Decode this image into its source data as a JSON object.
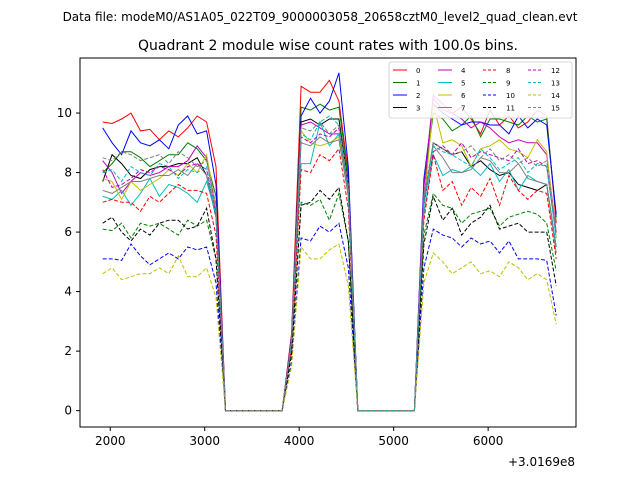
{
  "chart_data": {
    "type": "line",
    "suptitle": "Data file: modeM0/AS1A05_022T09_9000003058_20658cztM0_level2_quad_clean.evt",
    "title": "Quadrant 2 module wise count rates with 100.0s bins.",
    "xlabel": "",
    "ylabel": "",
    "x_offset_label": "+3.0169e8",
    "xlim": [
      1680,
      6930
    ],
    "ylim": [
      -0.55,
      11.85
    ],
    "xticks": [
      2000,
      3000,
      4000,
      5000,
      6000
    ],
    "yticks": [
      0,
      2,
      4,
      6,
      8,
      10
    ],
    "grid": false,
    "legend_position": "top-right",
    "x": [
      1920,
      2020,
      2120,
      2220,
      2320,
      2420,
      2520,
      2620,
      2720,
      2820,
      2920,
      3020,
      3120,
      3220,
      3320,
      3420,
      3520,
      3620,
      3720,
      3820,
      3920,
      4020,
      4120,
      4220,
      4320,
      4420,
      4520,
      4620,
      4720,
      4820,
      4920,
      5020,
      5120,
      5220,
      5320,
      5420,
      5520,
      5620,
      5720,
      5820,
      5920,
      6020,
      6120,
      6220,
      6320,
      6420,
      6520,
      6620,
      6720
    ],
    "series": [
      {
        "name": "0",
        "color": "#ff0000",
        "dash": false,
        "values": [
          9.7,
          9.65,
          9.8,
          10.0,
          9.4,
          9.45,
          9.1,
          9.4,
          9.2,
          9.5,
          9.9,
          9.7,
          8.2,
          0,
          0,
          0,
          0,
          0,
          0,
          0,
          2.6,
          10.9,
          10.7,
          10.7,
          11.1,
          10.4,
          8.0,
          0,
          0,
          0,
          0,
          0,
          0,
          0,
          7.0,
          10.5,
          10.1,
          10.0,
          10.2,
          9.8,
          9.3,
          10.1,
          9.6,
          9.9,
          9.5,
          9.7,
          10.1,
          9.9,
          6.3
        ]
      },
      {
        "name": "1",
        "color": "#008000",
        "dash": false,
        "values": [
          8.0,
          8.3,
          8.7,
          8.7,
          8.5,
          8.2,
          8.4,
          8.6,
          8.6,
          9.0,
          8.8,
          8.4,
          7.2,
          0,
          0,
          0,
          0,
          0,
          0,
          0,
          2.4,
          10.2,
          10.1,
          10.3,
          10.1,
          10.2,
          7.8,
          0,
          0,
          0,
          0,
          0,
          0,
          0,
          7.6,
          10.0,
          9.8,
          9.4,
          9.6,
          9.9,
          9.2,
          9.8,
          9.8,
          9.7,
          9.6,
          9.9,
          9.7,
          9.8,
          6.5
        ]
      },
      {
        "name": "2",
        "color": "#0000ff",
        "dash": false,
        "values": [
          9.5,
          9.0,
          8.6,
          9.4,
          9.0,
          8.9,
          9.1,
          8.8,
          9.6,
          9.9,
          9.3,
          9.4,
          7.6,
          0,
          0,
          0,
          0,
          0,
          0,
          0,
          2.5,
          9.9,
          10.5,
          10.0,
          10.4,
          11.35,
          8.2,
          0,
          0,
          0,
          0,
          0,
          0,
          0,
          7.8,
          10.3,
          10.0,
          9.8,
          9.6,
          9.7,
          9.7,
          9.6,
          9.6,
          9.3,
          9.9,
          9.5,
          9.8,
          9.6,
          6.6
        ]
      },
      {
        "name": "3",
        "color": "#000000",
        "dash": false,
        "values": [
          7.7,
          8.6,
          8.3,
          7.9,
          7.8,
          8.1,
          8.2,
          8.2,
          8.3,
          8.3,
          8.5,
          7.9,
          6.5,
          0,
          0,
          0,
          0,
          0,
          0,
          0,
          2.4,
          9.7,
          9.8,
          9.6,
          9.8,
          9.8,
          7.6,
          0,
          0,
          0,
          0,
          0,
          0,
          0,
          6.9,
          9.0,
          8.8,
          8.6,
          8.7,
          8.2,
          8.4,
          8.1,
          7.9,
          8.0,
          7.6,
          7.5,
          7.4,
          7.6,
          5.5
        ]
      },
      {
        "name": "4",
        "color": "#bf00bf",
        "dash": false,
        "values": [
          8.4,
          8.0,
          7.3,
          7.7,
          8.0,
          7.9,
          8.0,
          8.2,
          8.2,
          8.4,
          8.9,
          8.5,
          6.7,
          0,
          0,
          0,
          0,
          0,
          0,
          0,
          2.4,
          9.6,
          9.7,
          9.5,
          9.3,
          9.3,
          7.5,
          0,
          0,
          0,
          0,
          0,
          0,
          0,
          7.5,
          10.6,
          10.3,
          10.0,
          9.8,
          9.5,
          9.7,
          9.5,
          9.2,
          9.0,
          9.1,
          9.0,
          9.0,
          8.6,
          6.0
        ]
      },
      {
        "name": "5",
        "color": "#00bfbf",
        "dash": false,
        "values": [
          7.2,
          7.1,
          7.4,
          6.9,
          7.3,
          7.8,
          7.2,
          7.6,
          7.5,
          7.3,
          7.0,
          7.7,
          6.6,
          0,
          0,
          0,
          0,
          0,
          0,
          0,
          2.2,
          8.3,
          8.3,
          9.7,
          8.9,
          9.3,
          7.2,
          0,
          0,
          0,
          0,
          0,
          0,
          0,
          6.6,
          8.6,
          7.9,
          8.1,
          8.0,
          8.2,
          7.9,
          8.3,
          7.7,
          8.1,
          7.4,
          7.9,
          7.7,
          7.6,
          5.5
        ]
      },
      {
        "name": "6",
        "color": "#bfbf00",
        "dash": false,
        "values": [
          7.8,
          7.7,
          7.1,
          7.7,
          7.4,
          7.6,
          7.8,
          8.1,
          7.9,
          8.3,
          8.0,
          8.6,
          6.8,
          0,
          0,
          0,
          0,
          0,
          0,
          0,
          2.3,
          9.4,
          9.0,
          8.9,
          9.0,
          9.2,
          7.3,
          0,
          0,
          0,
          0,
          0,
          0,
          0,
          6.9,
          10.3,
          9.0,
          9.1,
          8.9,
          8.2,
          8.8,
          8.9,
          9.1,
          8.8,
          8.7,
          8.5,
          9.1,
          8.7,
          5.8
        ]
      },
      {
        "name": "7",
        "color": "#808080",
        "dash": false,
        "values": [
          7.4,
          7.3,
          7.5,
          7.7,
          7.7,
          7.8,
          7.9,
          7.9,
          8.1,
          7.9,
          8.3,
          7.9,
          6.6,
          0,
          0,
          0,
          0,
          0,
          0,
          0,
          2.3,
          9.0,
          8.9,
          9.2,
          9.0,
          9.1,
          7.2,
          0,
          0,
          0,
          0,
          0,
          0,
          0,
          7.1,
          8.9,
          8.5,
          8.0,
          8.0,
          8.1,
          8.5,
          8.4,
          8.0,
          8.0,
          8.3,
          7.8,
          7.7,
          7.6,
          5.3
        ]
      },
      {
        "name": "8",
        "color": "#ff0000",
        "dash": true,
        "values": [
          7.0,
          7.1,
          7.0,
          7.0,
          6.7,
          7.2,
          7.0,
          7.3,
          7.6,
          7.4,
          7.4,
          7.3,
          5.9,
          0,
          0,
          0,
          0,
          0,
          0,
          0,
          2.1,
          8.1,
          8.0,
          8.6,
          8.4,
          8.8,
          6.8,
          0,
          0,
          0,
          0,
          0,
          0,
          0,
          6.4,
          8.6,
          7.4,
          7.7,
          6.9,
          7.5,
          7.2,
          7.8,
          6.9,
          7.9,
          7.4,
          7.1,
          7.4,
          7.3,
          5.1
        ]
      },
      {
        "name": "9",
        "color": "#008000",
        "dash": true,
        "values": [
          6.1,
          6.05,
          6.3,
          5.8,
          6.3,
          6.2,
          6.3,
          6.1,
          5.9,
          6.4,
          6.2,
          6.4,
          5.1,
          0,
          0,
          0,
          0,
          0,
          0,
          0,
          1.9,
          7.0,
          6.9,
          7.1,
          6.4,
          7.3,
          5.7,
          0,
          0,
          0,
          0,
          0,
          0,
          0,
          5.9,
          7.3,
          6.9,
          6.8,
          6.3,
          6.6,
          6.7,
          6.8,
          6.2,
          6.5,
          6.6,
          6.7,
          6.6,
          6.3,
          4.7
        ]
      },
      {
        "name": "10",
        "color": "#0000ff",
        "dash": true,
        "values": [
          5.1,
          5.1,
          5.05,
          5.6,
          5.2,
          4.9,
          5.1,
          5.3,
          5.1,
          5.5,
          5.4,
          5.5,
          4.3,
          0,
          0,
          0,
          0,
          0,
          0,
          0,
          1.6,
          5.8,
          5.7,
          6.2,
          6.0,
          6.3,
          4.8,
          0,
          0,
          0,
          0,
          0,
          0,
          0,
          4.8,
          6.1,
          5.9,
          5.8,
          5.5,
          5.8,
          5.6,
          5.7,
          5.3,
          5.7,
          5.1,
          5.1,
          5.1,
          5.05,
          3.2
        ]
      },
      {
        "name": "11",
        "color": "#000000",
        "dash": true,
        "values": [
          6.3,
          6.5,
          6.0,
          5.7,
          6.1,
          5.9,
          6.3,
          6.4,
          6.4,
          6.1,
          6.2,
          6.8,
          5.1,
          0,
          0,
          0,
          0,
          0,
          0,
          0,
          1.9,
          6.9,
          7.0,
          7.4,
          7.1,
          7.5,
          5.7,
          0,
          0,
          0,
          0,
          0,
          0,
          0,
          5.6,
          7.2,
          6.4,
          6.8,
          5.9,
          6.3,
          6.5,
          6.9,
          6.1,
          6.2,
          6.3,
          6.0,
          6.0,
          6.0,
          4.2
        ]
      },
      {
        "name": "12",
        "color": "#bf00bf",
        "dash": true,
        "values": [
          8.1,
          7.5,
          7.6,
          7.8,
          8.1,
          8.0,
          8.2,
          8.1,
          7.9,
          8.2,
          8.3,
          8.1,
          6.6,
          0,
          0,
          0,
          0,
          0,
          0,
          0,
          2.3,
          9.2,
          9.0,
          9.3,
          9.2,
          9.5,
          7.4,
          0,
          0,
          0,
          0,
          0,
          0,
          0,
          7.0,
          8.7,
          8.9,
          8.6,
          9.0,
          8.5,
          8.7,
          8.6,
          8.5,
          8.4,
          8.8,
          8.3,
          8.4,
          8.2,
          5.9
        ]
      },
      {
        "name": "13",
        "color": "#00bfbf",
        "dash": true,
        "values": [
          8.0,
          8.1,
          7.7,
          8.2,
          8.0,
          7.9,
          8.3,
          8.2,
          7.8,
          8.1,
          8.0,
          8.2,
          6.5,
          0,
          0,
          0,
          0,
          0,
          0,
          0,
          2.3,
          9.3,
          9.1,
          9.7,
          9.9,
          9.6,
          7.3,
          0,
          0,
          0,
          0,
          0,
          0,
          0,
          6.9,
          8.9,
          8.7,
          8.6,
          8.4,
          8.2,
          8.8,
          8.5,
          8.1,
          8.3,
          8.5,
          8.0,
          8.3,
          8.2,
          5.8
        ]
      },
      {
        "name": "14",
        "color": "#bfbf00",
        "dash": true,
        "values": [
          4.6,
          4.8,
          4.4,
          4.5,
          4.6,
          4.6,
          4.8,
          4.6,
          5.2,
          4.5,
          4.5,
          4.8,
          3.8,
          0,
          0,
          0,
          0,
          0,
          0,
          0,
          1.5,
          5.5,
          5.1,
          5.1,
          5.4,
          5.6,
          4.2,
          0,
          0,
          0,
          0,
          0,
          0,
          0,
          4.3,
          5.3,
          5.0,
          4.6,
          4.8,
          5.0,
          4.6,
          4.7,
          4.5,
          5.0,
          4.8,
          4.4,
          4.6,
          4.4,
          2.9
        ]
      },
      {
        "name": "15",
        "color": "#808080",
        "dash": true,
        "values": [
          8.5,
          8.4,
          8.7,
          8.6,
          8.4,
          8.5,
          8.6,
          8.3,
          8.7,
          8.5,
          8.2,
          8.4,
          6.9,
          0,
          0,
          0,
          0,
          0,
          0,
          0,
          2.4,
          9.5,
          9.4,
          9.7,
          9.3,
          9.6,
          7.6,
          0,
          0,
          0,
          0,
          0,
          0,
          0,
          7.2,
          9.0,
          8.8,
          8.6,
          8.7,
          8.9,
          8.5,
          8.8,
          8.4,
          8.6,
          8.3,
          8.5,
          8.2,
          8.4,
          6.0
        ]
      }
    ]
  }
}
